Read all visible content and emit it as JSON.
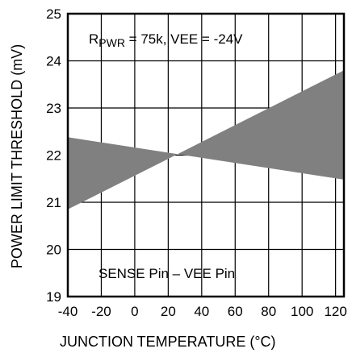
{
  "chart_data": {
    "type": "area",
    "title": "",
    "xlabel": "JUNCTION TEMPERATURE (°C)",
    "ylabel": "POWER LIMIT THRESHOLD (mV)",
    "xlim": [
      -40,
      125
    ],
    "ylim": [
      19,
      25
    ],
    "x_ticks": [
      -40,
      -20,
      0,
      20,
      40,
      60,
      80,
      100,
      120
    ],
    "y_ticks": [
      19,
      20,
      21,
      22,
      23,
      24,
      25
    ],
    "x_tick_labels": [
      "-40",
      "-20",
      "0",
      "20",
      "40",
      "60",
      "80",
      "100",
      "120"
    ],
    "y_tick_labels": [
      "19",
      "20",
      "21",
      "22",
      "23",
      "24",
      "25"
    ],
    "grid": true,
    "fill_color": "#808080",
    "annotations": {
      "condition_r": "R",
      "condition_sub": "PWR",
      "condition_rest": " = 75k, VEE = -24V",
      "bottom_note": "SENSE Pin – VEE Pin"
    },
    "series": [
      {
        "x": [
          -40,
          125
        ],
        "values": [
          22.38,
          21.48
        ]
      },
      {
        "x": [
          -40,
          125
        ],
        "values": [
          20.85,
          23.8
        ]
      }
    ]
  }
}
